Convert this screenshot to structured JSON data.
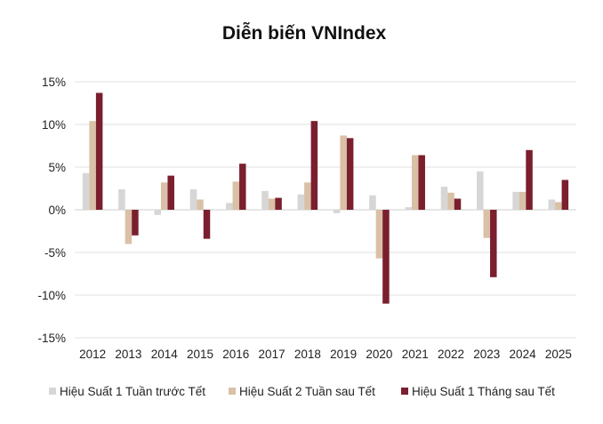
{
  "chart_data": {
    "type": "bar",
    "title": "Diễn biến VNIndex",
    "categories": [
      "2012",
      "2013",
      "2014",
      "2015",
      "2016",
      "2017",
      "2018",
      "2019",
      "2020",
      "2021",
      "2022",
      "2023",
      "2024",
      "2025"
    ],
    "series": [
      {
        "name": "Hiệu Suất 1 Tuần trước Tết",
        "color": "#d6d6d6",
        "values": [
          4.3,
          2.4,
          -0.6,
          2.4,
          0.8,
          2.2,
          1.8,
          -0.4,
          1.7,
          0.3,
          2.7,
          4.5,
          2.1,
          1.2
        ]
      },
      {
        "name": "Hiệu Suất 2 Tuần sau Tết",
        "color": "#d9c0a6",
        "values": [
          10.4,
          -4.0,
          3.2,
          1.2,
          3.3,
          1.3,
          3.2,
          8.7,
          -5.7,
          6.4,
          2.0,
          -3.3,
          2.1,
          0.9
        ]
      },
      {
        "name": "Hiệu Suất 1 Tháng sau Tết",
        "color": "#7a1f2e",
        "values": [
          13.7,
          -3.0,
          4.0,
          -3.4,
          5.4,
          1.4,
          10.4,
          8.4,
          -11.0,
          6.4,
          1.3,
          -7.9,
          7.0,
          3.5
        ]
      }
    ],
    "yticks": [
      "15%",
      "10%",
      "5%",
      "0%",
      "-5%",
      "-10%",
      "-15%"
    ],
    "ytick_values": [
      15,
      10,
      5,
      0,
      -5,
      -10,
      -15
    ],
    "ylim": [
      -15,
      15
    ],
    "grid": true,
    "legend_position": "bottom",
    "xlabel": "",
    "ylabel": ""
  }
}
